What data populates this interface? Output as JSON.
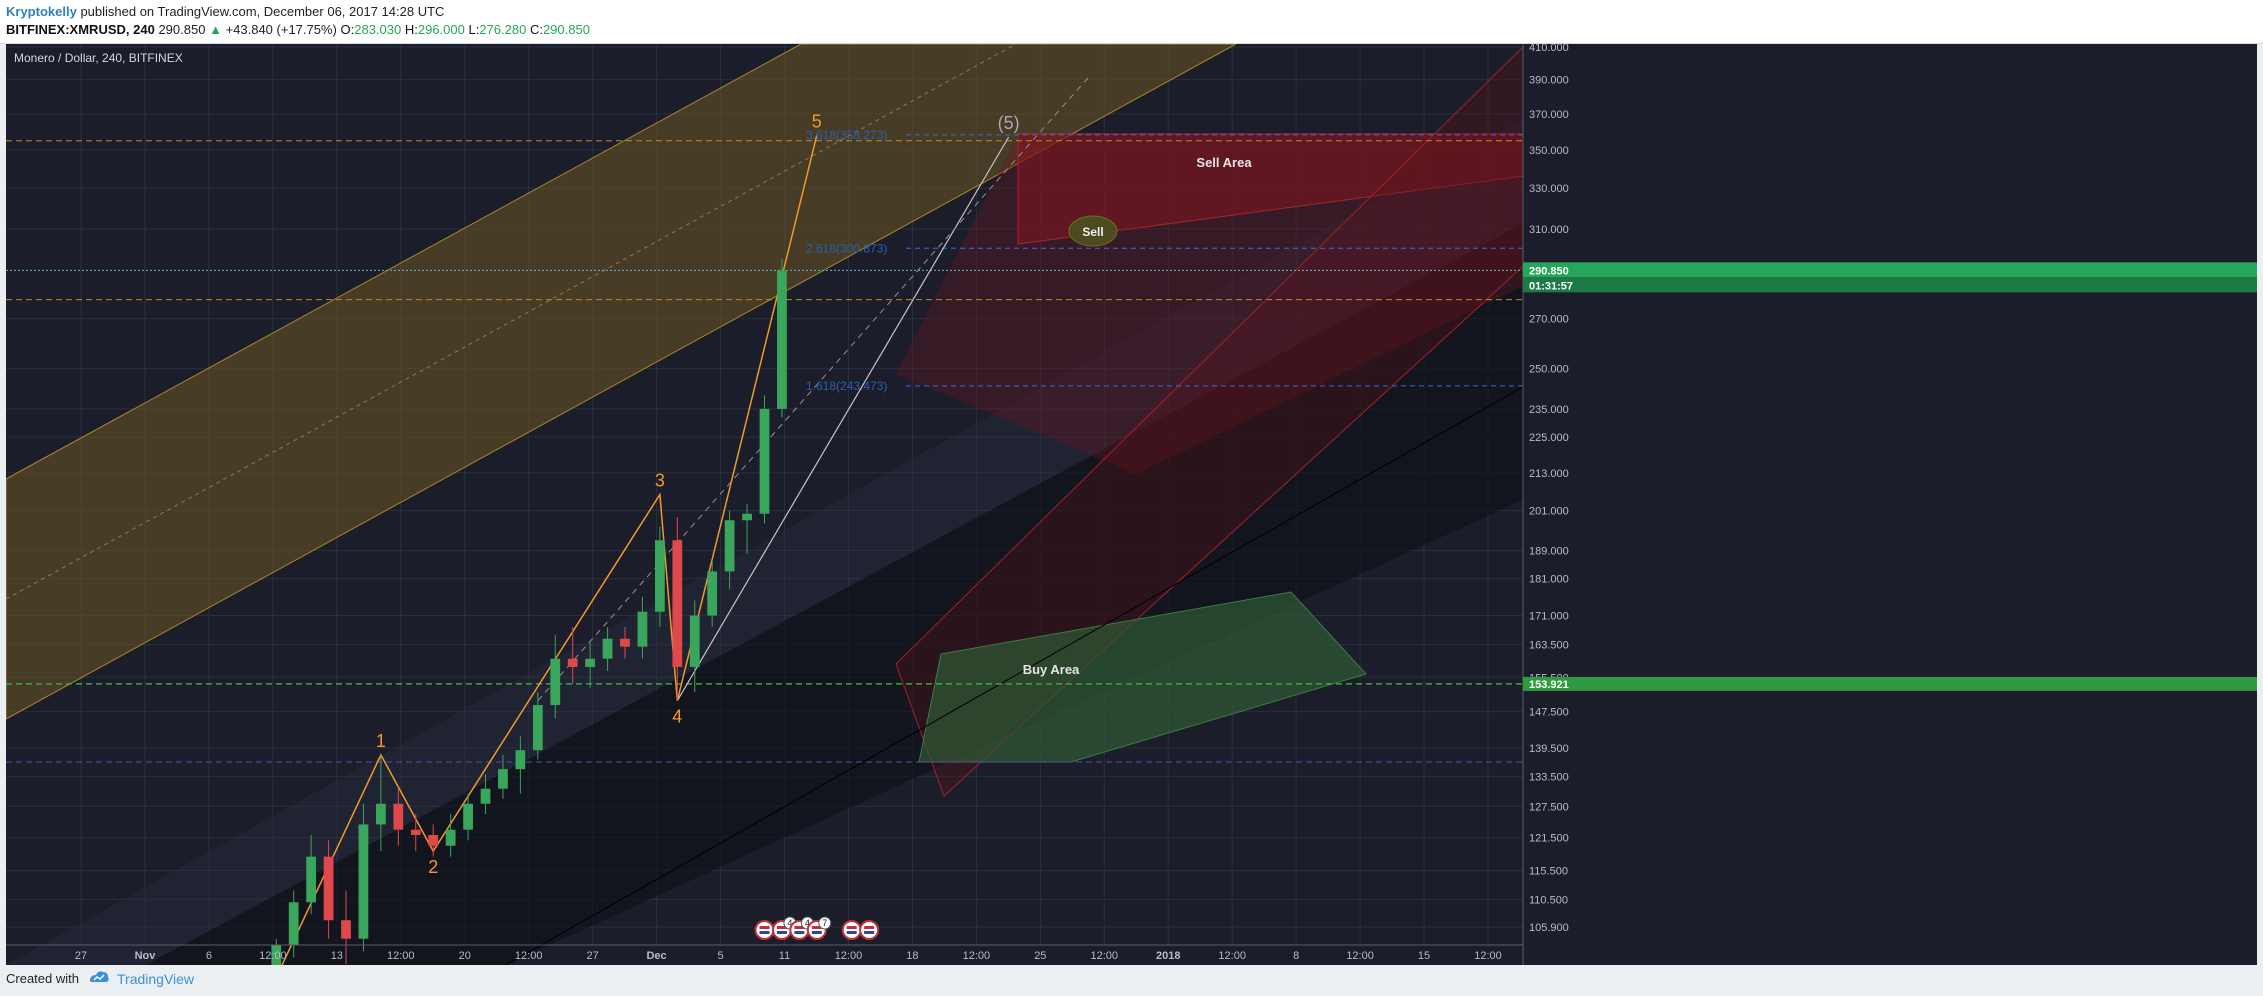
{
  "header": {
    "author": "Kryptokelly",
    "published": "published on TradingView.com, December 06, 2017 14:28 UTC",
    "symbol": "BITFINEX:XMRUSD, 240",
    "last": "290.850",
    "change": "+43.840 (+17.75%)",
    "open_label": "O:",
    "open": "283.030",
    "high_label": "H:",
    "high": "296.000",
    "low_label": "L:",
    "low": "276.280",
    "close_label": "C:",
    "close": "290.850"
  },
  "footer": {
    "created": "Created with",
    "brand": "TradingView"
  },
  "colors": {
    "background": "#1b1e2a",
    "grid": "#2b2f3d",
    "candle_up": "#3aa65b",
    "candle_down": "#e0494b",
    "wave_label": "#f09a2c",
    "fib_label": "#2e5fae",
    "sell_zone": "#8a1620",
    "buy_zone": "#2f5a35",
    "pitchfork_yellow": "#6b5620",
    "last_price_tag": "#26a65b"
  },
  "icons": [
    "us-flag-event-icon"
  ],
  "chart_data": {
    "type": "candlestick",
    "title": "Monero / Dollar, 240, BITFINEX",
    "price_scale": "log",
    "ylim": [
      103,
      412
    ],
    "x_range": [
      "2017-10-23",
      "2018-01-18"
    ],
    "y_ticks": [
      "410.000",
      "390.000",
      "370.000",
      "350.000",
      "330.000",
      "310.000",
      "290.850",
      "270.000",
      "250.000",
      "235.000",
      "225.000",
      "213.000",
      "201.000",
      "189.000",
      "181.000",
      "171.000",
      "163.500",
      "155.500",
      "153.921",
      "147.500",
      "139.500",
      "133.500",
      "127.500",
      "121.500",
      "115.500",
      "110.500",
      "105.900"
    ],
    "x_ticks": [
      "27",
      "Nov",
      "6",
      "12:00",
      "13",
      "12:00",
      "20",
      "12:00",
      "27",
      "Dec",
      "5",
      "11",
      "12:00",
      "18",
      "12:00",
      "25",
      "12:00",
      "2018",
      "12:00",
      "8",
      "12:00",
      "15",
      "12:00"
    ],
    "last_price": "290.850",
    "countdown": "01:31:57",
    "support_tag": "153.921",
    "ohlc_approx": [
      [
        "2017-11-07",
        98,
        104,
        97,
        103
      ],
      [
        "2017-11-08",
        103,
        112,
        101,
        110
      ],
      [
        "2017-11-09",
        110,
        122,
        108,
        118
      ],
      [
        "2017-11-10",
        118,
        121,
        104,
        107
      ],
      [
        "2017-11-11",
        107,
        112,
        100,
        104
      ],
      [
        "2017-11-12",
        104,
        128,
        102,
        124
      ],
      [
        "2017-11-13",
        124,
        138,
        119,
        128
      ],
      [
        "2017-11-14",
        128,
        131,
        120,
        123
      ],
      [
        "2017-11-15",
        123,
        126,
        119,
        122
      ],
      [
        "2017-11-16",
        122,
        124,
        118,
        120
      ],
      [
        "2017-11-17",
        120,
        126,
        118,
        123
      ],
      [
        "2017-11-18",
        123,
        130,
        121,
        128
      ],
      [
        "2017-11-19",
        128,
        134,
        126,
        131
      ],
      [
        "2017-11-20",
        131,
        138,
        129,
        135
      ],
      [
        "2017-11-21",
        135,
        142,
        130,
        139
      ],
      [
        "2017-11-22",
        139,
        152,
        137,
        149
      ],
      [
        "2017-11-23",
        149,
        166,
        146,
        160
      ],
      [
        "2017-11-24",
        160,
        168,
        154,
        158
      ],
      [
        "2017-11-25",
        158,
        164,
        153,
        160
      ],
      [
        "2017-11-26",
        160,
        168,
        157,
        165
      ],
      [
        "2017-11-27",
        165,
        168,
        160,
        163
      ],
      [
        "2017-11-28",
        163,
        176,
        160,
        172
      ],
      [
        "2017-11-29",
        172,
        196,
        168,
        192
      ],
      [
        "2017-11-30",
        192,
        199,
        150,
        158
      ],
      [
        "2017-12-01",
        158,
        175,
        152,
        171
      ],
      [
        "2017-12-02",
        171,
        186,
        168,
        183
      ],
      [
        "2017-12-03",
        183,
        201,
        178,
        198
      ],
      [
        "2017-12-04",
        198,
        203,
        188,
        200
      ],
      [
        "2017-12-05",
        200,
        240,
        197,
        235
      ],
      [
        "2017-12-06",
        235,
        296,
        232,
        290.85
      ]
    ],
    "wave_labels": [
      {
        "text": "1",
        "date": "2017-11-13",
        "price": 138
      },
      {
        "text": "2",
        "date": "2017-11-16",
        "price": 119
      },
      {
        "text": "3",
        "date": "2017-11-29",
        "price": 206
      },
      {
        "text": "4",
        "date": "2017-11-30",
        "price": 150
      },
      {
        "text": "5",
        "date": "2017-12-08",
        "price": 358
      },
      {
        "text": "(5)",
        "date": "2017-12-19",
        "price": 357
      }
    ],
    "fib_levels": [
      {
        "label": "3.618(358.273)",
        "price": 358.273
      },
      {
        "label": "2.618(300.873)",
        "price": 300.873
      },
      {
        "label": "1.618(243.473)",
        "price": 243.473
      }
    ],
    "zone_labels": [
      {
        "text": "Sell Area"
      },
      {
        "text": "Buy Area"
      },
      {
        "text": "Sell"
      }
    ],
    "horizontal_lines": [
      {
        "price": 355,
        "style": "dashed",
        "color": "#c8862a"
      },
      {
        "price": 278,
        "style": "dashed",
        "color": "#c8862a"
      },
      {
        "price": 153.921,
        "style": "dashed",
        "color": "#3aa63a"
      },
      {
        "price": 136.5,
        "style": "dashed",
        "color": "#5a4bb0"
      },
      {
        "price": 290.85,
        "style": "dotted",
        "color": "#6fb3c5"
      }
    ],
    "event_markers": [
      {
        "date": "2017-12-05",
        "count": ""
      },
      {
        "date": "2017-12-06",
        "count": "4"
      },
      {
        "date": "2017-12-07",
        "count": "4"
      },
      {
        "date": "2017-12-08",
        "count": "7"
      },
      {
        "date": "2017-12-10",
        "count": ""
      },
      {
        "date": "2017-12-11",
        "count": ""
      }
    ]
  }
}
